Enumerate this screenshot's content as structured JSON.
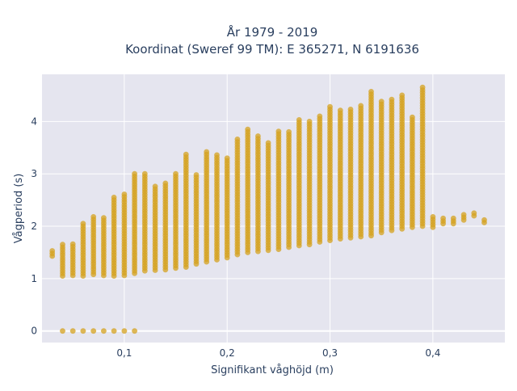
{
  "chart_data": {
    "type": "scatter",
    "title_line1": "År 1979 - 2019",
    "title_line2": "Koordinat (Sweref 99 TM): E 365271, N 6191636",
    "xlabel": "Signifikant våghöjd (m)",
    "ylabel": "Vågperiod (s)",
    "xlim": [
      0.02,
      0.47
    ],
    "ylim": [
      -0.22,
      4.9
    ],
    "xticks": [
      0.1,
      0.2,
      0.3,
      0.4
    ],
    "xtick_labels": [
      "0,1",
      "0,2",
      "0,3",
      "0,4"
    ],
    "yticks": [
      0,
      1,
      2,
      3,
      4
    ],
    "ytick_labels": [
      "0",
      "1",
      "2",
      "3",
      "4"
    ],
    "grid": true,
    "legend": false,
    "marker_color": "#d4a21f",
    "plot_bg": "#e5e5ef",
    "series": [
      {
        "x": [
          0.04,
          0.05,
          0.06,
          0.07,
          0.08,
          0.09,
          0.1,
          0.11
        ],
        "y": [
          0,
          0,
          0,
          0,
          0,
          0,
          0,
          0
        ]
      }
    ],
    "bands": [
      [
        0.03,
        1.43,
        1.56
      ],
      [
        0.04,
        1.05,
        1.65
      ],
      [
        0.05,
        1.06,
        1.7
      ],
      [
        0.06,
        1.05,
        2.05
      ],
      [
        0.07,
        1.08,
        2.2
      ],
      [
        0.08,
        1.06,
        2.2
      ],
      [
        0.09,
        1.05,
        2.55
      ],
      [
        0.1,
        1.06,
        2.65
      ],
      [
        0.11,
        1.1,
        3.0
      ],
      [
        0.12,
        1.15,
        3.0
      ],
      [
        0.13,
        1.16,
        2.8
      ],
      [
        0.14,
        1.17,
        2.85
      ],
      [
        0.15,
        1.2,
        3.0
      ],
      [
        0.16,
        1.22,
        3.4
      ],
      [
        0.17,
        1.28,
        3.0
      ],
      [
        0.18,
        1.32,
        3.45
      ],
      [
        0.19,
        1.36,
        3.38
      ],
      [
        0.2,
        1.4,
        3.3
      ],
      [
        0.21,
        1.46,
        3.7
      ],
      [
        0.22,
        1.5,
        3.85
      ],
      [
        0.23,
        1.52,
        3.75
      ],
      [
        0.24,
        1.54,
        3.6
      ],
      [
        0.25,
        1.56,
        3.85
      ],
      [
        0.26,
        1.6,
        3.8
      ],
      [
        0.27,
        1.63,
        4.05
      ],
      [
        0.28,
        1.65,
        4.0
      ],
      [
        0.29,
        1.7,
        4.1
      ],
      [
        0.3,
        1.73,
        4.3
      ],
      [
        0.31,
        1.76,
        4.25
      ],
      [
        0.32,
        1.78,
        4.25
      ],
      [
        0.33,
        1.8,
        4.3
      ],
      [
        0.34,
        1.82,
        4.58
      ],
      [
        0.35,
        1.88,
        4.4
      ],
      [
        0.36,
        1.92,
        4.45
      ],
      [
        0.37,
        1.95,
        4.5
      ],
      [
        0.38,
        1.98,
        4.1
      ],
      [
        0.39,
        2.0,
        4.68
      ],
      [
        0.4,
        1.98,
        2.2
      ],
      [
        0.41,
        2.05,
        2.15
      ],
      [
        0.42,
        2.05,
        2.15
      ],
      [
        0.43,
        2.12,
        2.25
      ],
      [
        0.44,
        2.2,
        2.25
      ],
      [
        0.45,
        2.07,
        2.12
      ]
    ]
  }
}
